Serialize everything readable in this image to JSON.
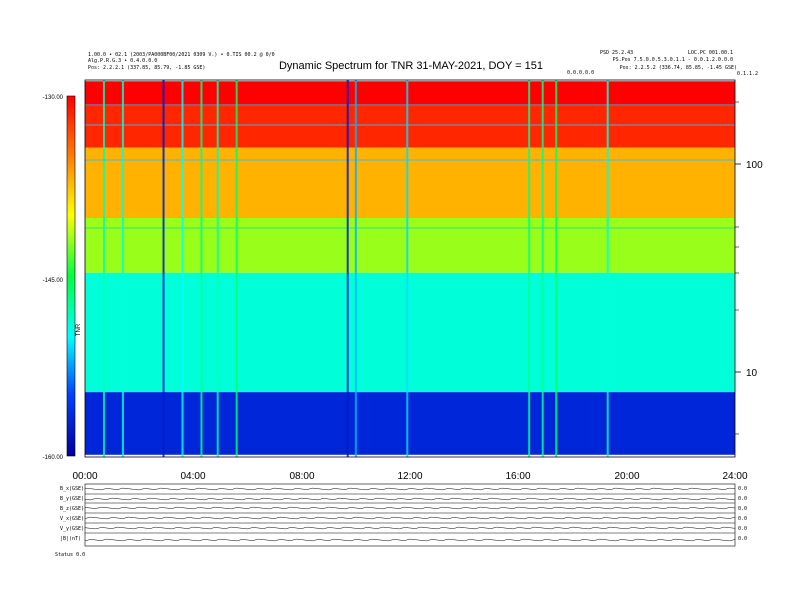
{
  "header": {
    "title": "Dynamic Spectrum for TNR 31-MAY-2021, DOY = 151",
    "left_line1": "1.00.0 • 02.1 (2003/PA000BF00/2021 0309 V.) • 0.TIS 00.2 @ 0/0",
    "left_line2": "Alg.P.R.G.3 • 0.4.0.0.0",
    "left_line3": "Pos:    2.2.2.1 (337.85, 85.79, -1.85 GSE)",
    "right_line1": "PSD 25.2.43",
    "right_line2": "LOC.PC 001.00.1",
    "right_line3": "PS.Pos 7.5.0.0.5.3.0.1.1 - 0.0.1.2.0.0.0",
    "right_line4": "Pos:    2.2.5.2 (336.74, 85.85, -1.45 GSE)",
    "right_tag": "0.0.0.0.0",
    "right_corner": "0.1.1.2"
  },
  "colorbar": {
    "labels": [
      "-130.00",
      "-145.00",
      "-160.00"
    ],
    "unit": "TNR"
  },
  "freq_axis": {
    "ticks": [
      "100",
      "10"
    ]
  },
  "time_axis": {
    "ticks": [
      "00:00",
      "04:00",
      "08:00",
      "12:00",
      "16:00",
      "20:00",
      "24:00"
    ]
  },
  "bottom_panels": {
    "rows": [
      {
        "left": "B_x(GSE)",
        "right": "0.0"
      },
      {
        "left": "B_y(GSE)",
        "right": "0.0"
      },
      {
        "left": "B_z(GSE)",
        "right": "0.0"
      },
      {
        "left": "V_x(GSE)",
        "right": "0.0"
      },
      {
        "left": "V_y(GSE)",
        "right": "0.0"
      },
      {
        "left": "|B|(nT)",
        "right": "0.0"
      }
    ],
    "foot_label": "Status  0.0"
  },
  "chart_data": {
    "type": "heatmap",
    "title": "Dynamic Spectrum for TNR 31-MAY-2021, DOY = 151",
    "x_ticks": [
      "00:00",
      "04:00",
      "08:00",
      "12:00",
      "16:00",
      "20:00",
      "24:00"
    ],
    "xlim_hours": [
      0,
      24
    ],
    "y_scale": "log",
    "y_ticks": [
      100,
      10
    ],
    "ylim_khz": [
      4,
      250
    ],
    "colorbar_range": [
      -160.0,
      -130.0
    ],
    "colorbar_ticks": [
      -130.0,
      -145.0,
      -160.0
    ],
    "colormap": [
      "#0000a0",
      "#0040ff",
      "#00ffff",
      "#00ff40",
      "#ffff00",
      "#ff8000",
      "#ff0000"
    ],
    "bands": [
      {
        "from_khz": 250,
        "to_khz": 190,
        "level": -130.0
      },
      {
        "from_khz": 190,
        "to_khz": 120,
        "level": -131.5
      },
      {
        "from_khz": 120,
        "to_khz": 55,
        "level": -137.0
      },
      {
        "from_khz": 55,
        "to_khz": 30,
        "level": -142.0
      },
      {
        "from_khz": 30,
        "to_khz": 8,
        "level": -149.0
      },
      {
        "from_khz": 8,
        "to_khz": 4,
        "level": -157.0
      }
    ],
    "bursts": [
      {
        "hour": 0.7,
        "level": -148.0
      },
      {
        "hour": 1.4,
        "level": -149.0
      },
      {
        "hour": 2.9,
        "level": -158.0
      },
      {
        "hour": 3.6,
        "level": -150.0
      },
      {
        "hour": 4.3,
        "level": -147.0
      },
      {
        "hour": 4.9,
        "level": -148.0
      },
      {
        "hour": 5.6,
        "level": -146.0
      },
      {
        "hour": 9.7,
        "level": -158.0
      },
      {
        "hour": 10.0,
        "level": -152.0
      },
      {
        "hour": 11.9,
        "level": -151.0
      },
      {
        "hour": 16.4,
        "level": -147.0
      },
      {
        "hour": 16.9,
        "level": -147.0
      },
      {
        "hour": 17.4,
        "level": -146.0
      },
      {
        "hour": 19.3,
        "level": -149.0
      }
    ]
  }
}
